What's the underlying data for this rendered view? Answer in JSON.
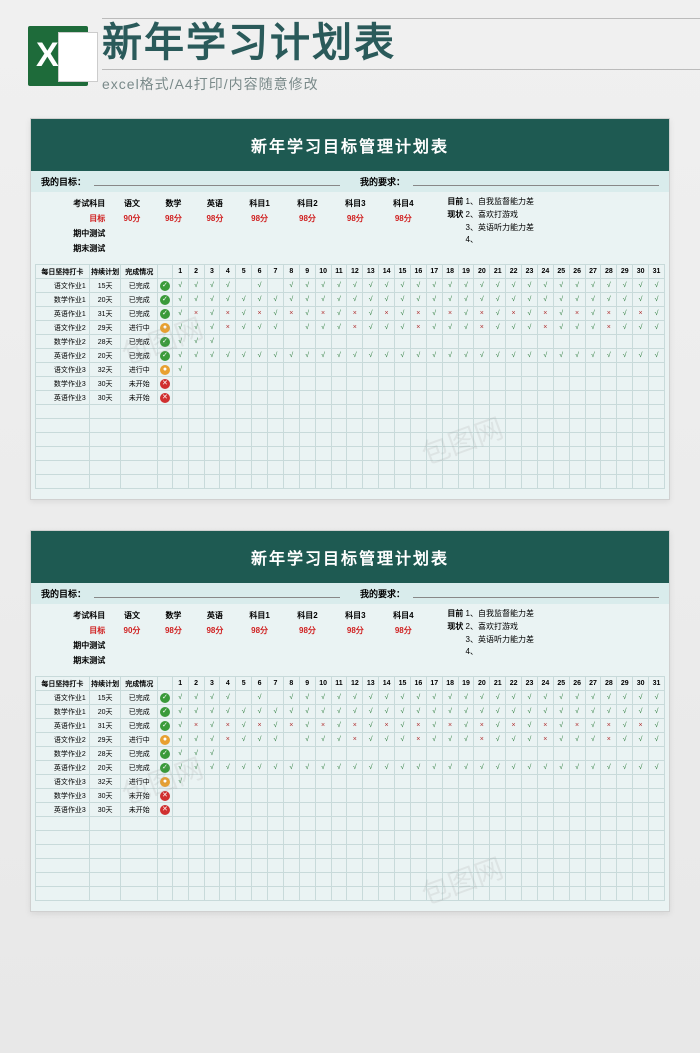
{
  "header": {
    "bigTitle": "新年学习计划表",
    "subtitle": "excel格式/A4打印/内容随意修改"
  },
  "sheet": {
    "title": "新年学习目标管理计划表",
    "goalLabel": "我的目标：",
    "reqLabel": "我的要求：",
    "subjects": {
      "headLabel": "考试科目",
      "cols": [
        "语文",
        "数学",
        "英语",
        "科目1",
        "科目2",
        "科目3",
        "科目4"
      ],
      "rows": [
        {
          "label": "目标",
          "vals": [
            "90分",
            "98分",
            "98分",
            "98分",
            "98分",
            "98分",
            "98分"
          ],
          "red": true
        },
        {
          "label": "期中测试",
          "vals": [
            "",
            "",
            "",
            "",
            "",
            "",
            ""
          ]
        },
        {
          "label": "期末测试",
          "vals": [
            "",
            "",
            "",
            "",
            "",
            "",
            ""
          ]
        }
      ]
    },
    "status": {
      "labL1": "目前",
      "labL2": "现状",
      "items": [
        "1、自我监督能力差",
        "2、喜欢打游戏",
        "3、英语听力能力差",
        "4、"
      ]
    },
    "daily": {
      "head": {
        "name": "每日坚持打卡",
        "plan": "持续计划",
        "stat": "完成情况"
      },
      "days": 31,
      "rows": [
        {
          "name": "语文作业1",
          "plan": "15天",
          "stat": "已完成",
          "icon": "ok",
          "marks": "vvvv v vvvvvvvvvvvvvvvvvvvvvvvvvv"
        },
        {
          "name": "数学作业1",
          "plan": "20天",
          "stat": "已完成",
          "icon": "ok",
          "marks": "vvvvvvvvvvvvvvvvvvvvvvvvvvvvvvv"
        },
        {
          "name": "英语作业1",
          "plan": "31天",
          "stat": "已完成",
          "icon": "ok",
          "marks": "vxvxvxvxvxvxvxvxvxvxvxvxvxvxvxv"
        },
        {
          "name": "语文作业2",
          "plan": "29天",
          "stat": "进行中",
          "icon": "prog",
          "marks": "vvvxvvv vvvxvvvxvvvxvvvxvvvxvvv"
        },
        {
          "name": "数学作业2",
          "plan": "28天",
          "stat": "已完成",
          "icon": "ok",
          "marks": "vvv                            "
        },
        {
          "name": "英语作业2",
          "plan": "20天",
          "stat": "已完成",
          "icon": "ok",
          "marks": "vvvvvvvvvvvvvvvvvvvvvvvvvvvvvvv"
        },
        {
          "name": "语文作业3",
          "plan": "32天",
          "stat": "进行中",
          "icon": "prog",
          "marks": "v                              "
        },
        {
          "name": "数学作业3",
          "plan": "30天",
          "stat": "未开始",
          "icon": "no",
          "marks": "                               "
        },
        {
          "name": "英语作业3",
          "plan": "30天",
          "stat": "未开始",
          "icon": "no",
          "marks": "                               "
        }
      ],
      "emptyRows": 6
    }
  },
  "colors": {
    "darkTeal": "#1e5a52",
    "lightTeal": "#eaf3f3",
    "midTeal": "#d9ecec",
    "red": "#d02020"
  },
  "watermark": "包图网"
}
